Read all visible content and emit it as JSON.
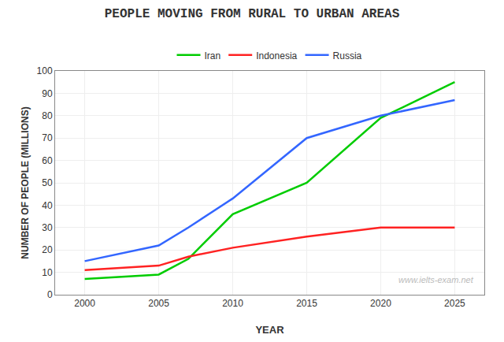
{
  "chart_data": {
    "type": "line",
    "title": "PEOPLE MOVING FROM RURAL TO URBAN AREAS",
    "xlabel": "YEAR",
    "ylabel": "NUMBER OF PEOPLE (MILLIONS)",
    "annotations": [
      "www.ielts-exam.net"
    ],
    "x": [
      2000,
      2005,
      2007,
      2010,
      2015,
      2020,
      2025
    ],
    "series": [
      {
        "name": "Iran",
        "color": "#00cc00",
        "values": [
          7,
          9,
          16,
          36,
          50,
          79,
          95
        ]
      },
      {
        "name": "Indonesia",
        "color": "#ff2222",
        "values": [
          11,
          13,
          17,
          21,
          26,
          30,
          30
        ]
      },
      {
        "name": "Russia",
        "color": "#3366ff",
        "values": [
          15,
          22,
          30,
          43,
          70,
          80,
          87
        ]
      }
    ],
    "xlim": [
      1998,
      2027
    ],
    "ylim": [
      0,
      100
    ],
    "xticks": [
      2000,
      2005,
      2010,
      2015,
      2020,
      2025
    ],
    "yticks": [
      0,
      10,
      20,
      30,
      40,
      50,
      60,
      70,
      80,
      90,
      100
    ],
    "grid": true,
    "legend": "top"
  }
}
